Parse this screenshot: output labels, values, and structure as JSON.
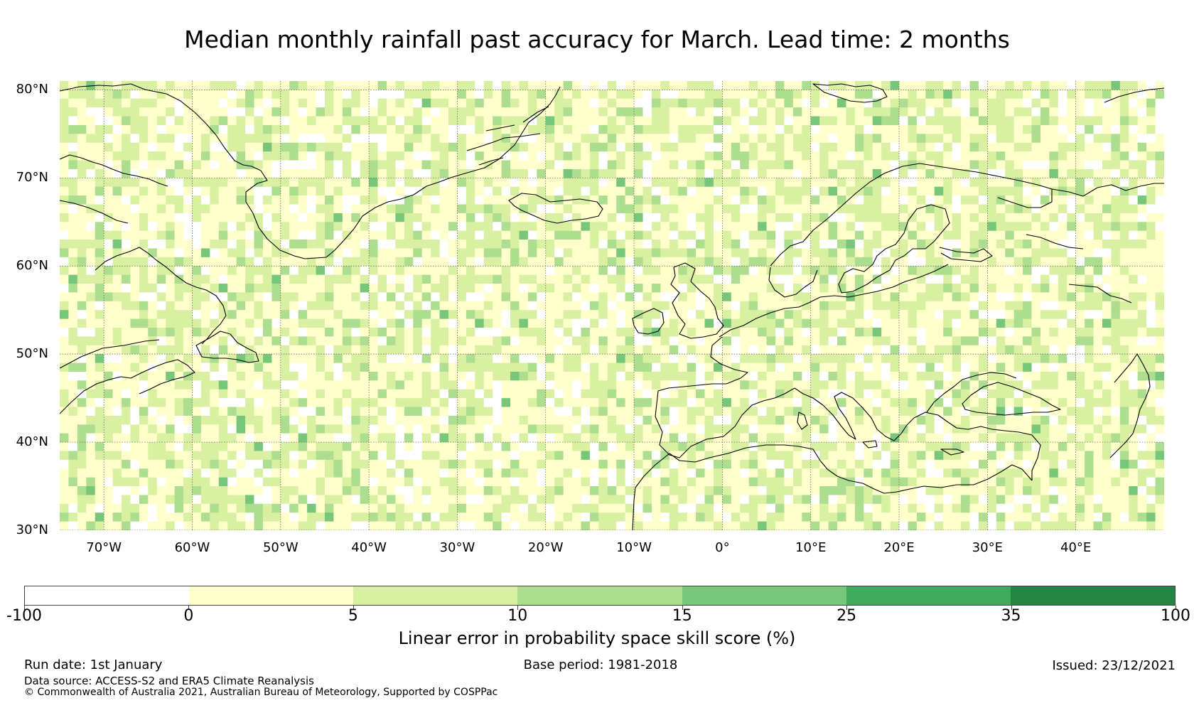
{
  "title": "Median monthly rainfall past accuracy for March. Lead time: 2 months",
  "map": {
    "projection": "equirectangular",
    "lon_range": [
      -75,
      50
    ],
    "lat_range": [
      30,
      81
    ],
    "graticule_style": "dotted",
    "lat_labels": [
      "80°N",
      "70°N",
      "60°N",
      "50°N",
      "40°N",
      "30°N"
    ],
    "lat_values": [
      80,
      70,
      60,
      50,
      40,
      30
    ],
    "lon_labels": [
      "70°W",
      "60°W",
      "50°W",
      "40°W",
      "30°W",
      "20°W",
      "10°W",
      "0°",
      "10°E",
      "20°E",
      "30°E",
      "40°E"
    ],
    "lon_values": [
      -70,
      -60,
      -50,
      -40,
      -30,
      -20,
      -10,
      0,
      10,
      20,
      30,
      40
    ],
    "coastline_color": "#000000",
    "grid_color": "#555555",
    "field": "skill score grid (approx. 1° cells), values mostly 0–15 %"
  },
  "colorbar": {
    "title": "Linear error in probability space skill score (%)",
    "bounds": [
      "-100",
      "0",
      "5",
      "10",
      "15",
      "25",
      "35",
      "100"
    ],
    "colors": [
      "#ffffff",
      "#ffffcc",
      "#d9f0a3",
      "#addd8e",
      "#78c679",
      "#41ab5d",
      "#238443"
    ]
  },
  "footer": {
    "run_date": "Run date: 1st January",
    "base_period": "Base period: 1981-2018",
    "issued": "Issued: 23/12/2021",
    "data_source": "Data source: ACCESS-S2 and ERA5 Climate Reanalysis",
    "copyright": "© Commonwealth of Australia 2021, Australian Bureau of Meteorology, Supported by COSPPac"
  }
}
